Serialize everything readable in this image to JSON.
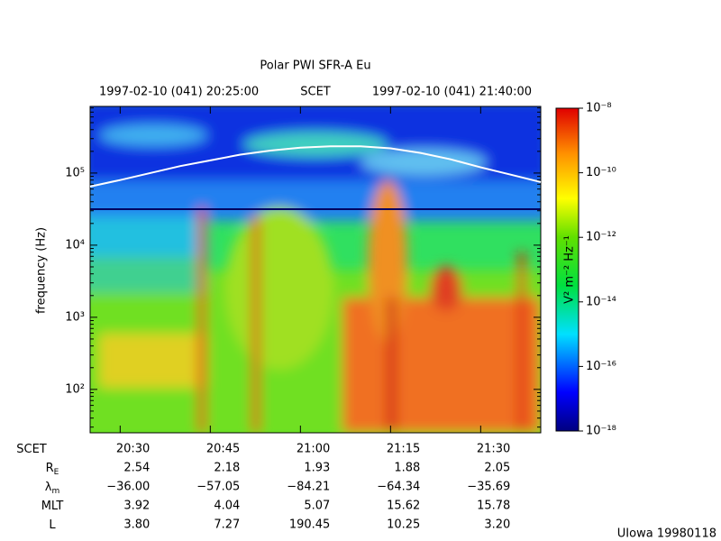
{
  "chart_data": {
    "type": "spectrogram",
    "title": "Polar PWI SFR-A Eu",
    "header": [
      "1997-02-10 (041) 20:25:00",
      "SCET",
      "1997-02-10 (041) 21:40:00"
    ],
    "ylabel": "frequency (Hz)",
    "xlim": [
      "20:25:00",
      "21:40:00"
    ],
    "xticks": [
      "20:30",
      "20:45",
      "21:00",
      "21:15",
      "21:30"
    ],
    "ylim": [
      25,
      840000
    ],
    "yscale": "log",
    "yticks": [
      {
        "value": 100,
        "label": "10²"
      },
      {
        "value": 1000,
        "label": "10³"
      },
      {
        "value": 10000,
        "label": "10⁴"
      },
      {
        "value": 100000,
        "label": "10⁵"
      }
    ],
    "series": [
      {
        "color": "#ffffff",
        "x": [
          "20:25",
          "20:30",
          "20:35",
          "20:40",
          "20:45",
          "20:50",
          "20:55",
          "21:00",
          "21:05",
          "21:10",
          "21:15",
          "21:20",
          "21:25",
          "21:30",
          "21:35",
          "21:40"
        ],
        "values": [
          65000,
          80000,
          100000,
          125000,
          150000,
          180000,
          205000,
          225000,
          235000,
          235000,
          220000,
          190000,
          155000,
          120000,
          95000,
          75000
        ]
      }
    ],
    "colorbar": {
      "label": "V² m⁻² Hz⁻¹",
      "lim": [
        1e-18,
        1e-08
      ],
      "ticks": [
        {
          "value": 1e-08,
          "label": "10⁻⁸"
        },
        {
          "value": 1e-10,
          "label": "10⁻¹⁰"
        },
        {
          "value": 1e-12,
          "label": "10⁻¹²"
        },
        {
          "value": 1e-14,
          "label": "10⁻¹⁴"
        },
        {
          "value": 1e-16,
          "label": "10⁻¹⁶"
        },
        {
          "value": 1e-18,
          "label": "10⁻¹⁸"
        }
      ]
    },
    "ephemeris": [
      {
        "label": "SCET",
        "values": [
          "20:30",
          "20:45",
          "21:00",
          "21:15",
          "21:30"
        ]
      },
      {
        "label": "R",
        "subscript": "E",
        "values": [
          "2.54",
          "2.18",
          "1.93",
          "1.88",
          "2.05"
        ]
      },
      {
        "label": "λ",
        "subscript": "m",
        "values": [
          "−36.00",
          "−57.05",
          "−84.21",
          "−64.34",
          "−35.69"
        ]
      },
      {
        "label": "MLT",
        "values": [
          "3.92",
          "4.04",
          "5.07",
          "15.62",
          "15.78"
        ]
      },
      {
        "label": "L",
        "values": [
          "3.80",
          "7.27",
          "190.45",
          "10.25",
          "3.20"
        ]
      }
    ],
    "footer": "UIowa 19980118"
  }
}
